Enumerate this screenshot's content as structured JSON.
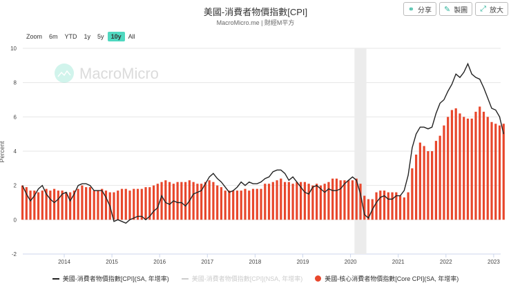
{
  "header": {
    "title": "美國-消費者物價指數[CPI]",
    "subtitle": "MacroMicro.me | 財經M平方",
    "share": "分享",
    "make_chart": "製圖",
    "enlarge": "放大"
  },
  "zoom": {
    "label": "Zoom",
    "options": [
      "6m",
      "YTD",
      "1y",
      "5y",
      "10y",
      "All"
    ],
    "active": "10y"
  },
  "watermark": "MacroMicro",
  "colors": {
    "cpi": "#222222",
    "cpi_nsa": "#cccccc",
    "core": "#e8472c",
    "recession": "#ececec"
  },
  "chart_data": {
    "type": "line+bar",
    "title": "美國-消費者物價指數[CPI]",
    "ylabel": "Percent",
    "ylim": [
      -2,
      10
    ],
    "yticks": [
      "-2",
      "0",
      "2",
      "4",
      "6",
      "8",
      "10"
    ],
    "xticks": [
      "2014",
      "2015",
      "2016",
      "2017",
      "2018",
      "2019",
      "2020",
      "2021",
      "2022",
      "2023"
    ],
    "start": "2013-02",
    "shaded_range": [
      "2020-02",
      "2020-04"
    ],
    "legend": [
      "美國-消費者物價指數[CPI](SA, 年增率)",
      "美國-消費者物價指數[CPI](NSA, 年增率)",
      "美國-核心消費者物價指數[Core CPI](SA, 年增率)"
    ],
    "series": [
      {
        "name": "美國-消費者物價指數[CPI](SA, 年增率)",
        "type": "line",
        "values": [
          2.0,
          1.5,
          1.1,
          1.4,
          1.8,
          2.0,
          1.5,
          1.2,
          1.0,
          1.2,
          1.5,
          1.6,
          1.1,
          1.5,
          2.0,
          2.1,
          2.1,
          2.0,
          1.7,
          1.7,
          1.7,
          1.3,
          0.8,
          -0.1,
          0.0,
          -0.1,
          -0.2,
          0.0,
          0.1,
          0.2,
          0.2,
          0.0,
          0.2,
          0.5,
          0.7,
          1.4,
          1.0,
          0.9,
          1.1,
          1.0,
          1.0,
          0.8,
          1.1,
          1.5,
          1.6,
          1.7,
          2.1,
          2.5,
          2.7,
          2.4,
          2.2,
          1.9,
          1.6,
          1.7,
          1.9,
          2.2,
          2.0,
          2.2,
          2.1,
          2.1,
          2.2,
          2.4,
          2.5,
          2.8,
          2.9,
          2.9,
          2.7,
          2.3,
          2.5,
          2.2,
          1.9,
          1.6,
          1.5,
          1.9,
          2.0,
          1.8,
          1.6,
          1.8,
          1.7,
          1.7,
          1.8,
          2.1,
          2.3,
          2.5,
          2.3,
          1.5,
          0.3,
          0.1,
          0.6,
          1.0,
          1.3,
          1.4,
          1.2,
          1.2,
          1.4,
          1.4,
          1.7,
          2.6,
          4.2,
          5.0,
          5.4,
          5.4,
          5.3,
          5.4,
          6.2,
          6.8,
          7.0,
          7.5,
          7.9,
          8.5,
          8.3,
          8.6,
          9.1,
          8.5,
          8.3,
          8.2,
          7.7,
          7.1,
          6.5,
          6.4,
          6.0,
          5.0
        ]
      },
      {
        "name": "美國-核心消費者物價指數[Core CPI](SA, 年增率)",
        "type": "bar",
        "values": [
          2.0,
          1.9,
          1.7,
          1.7,
          1.6,
          1.7,
          1.8,
          1.7,
          1.8,
          1.7,
          1.7,
          1.6,
          1.6,
          1.7,
          1.8,
          2.0,
          1.9,
          1.9,
          1.7,
          1.7,
          1.8,
          1.7,
          1.6,
          1.6,
          1.7,
          1.8,
          1.8,
          1.7,
          1.8,
          1.8,
          1.8,
          1.9,
          1.9,
          2.0,
          2.1,
          2.2,
          2.3,
          2.2,
          2.1,
          2.2,
          2.2,
          2.2,
          2.3,
          2.2,
          2.1,
          2.1,
          2.2,
          2.3,
          2.2,
          2.0,
          1.9,
          1.7,
          1.7,
          1.7,
          1.7,
          1.7,
          1.8,
          1.7,
          1.8,
          1.8,
          1.8,
          2.1,
          2.1,
          2.2,
          2.3,
          2.4,
          2.2,
          2.2,
          2.1,
          2.2,
          2.2,
          2.2,
          2.1,
          2.0,
          2.1,
          2.0,
          2.1,
          2.2,
          2.4,
          2.4,
          2.3,
          2.3,
          2.3,
          2.3,
          2.4,
          2.1,
          1.4,
          1.2,
          1.2,
          1.6,
          1.7,
          1.7,
          1.6,
          1.6,
          1.6,
          1.4,
          1.3,
          1.6,
          3.0,
          3.8,
          4.5,
          4.3,
          4.0,
          4.0,
          4.6,
          4.9,
          5.5,
          6.0,
          6.4,
          6.5,
          6.2,
          6.0,
          5.9,
          5.9,
          6.3,
          6.6,
          6.3,
          6.0,
          5.7,
          5.6,
          5.5,
          5.6
        ]
      }
    ]
  }
}
